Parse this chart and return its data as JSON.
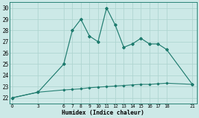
{
  "xlabel": "Humidex (Indice chaleur)",
  "bg_color": "#cce9e7",
  "line_color": "#1e7b6e",
  "grid_color": "#aed4d0",
  "x_ticks": [
    0,
    3,
    6,
    7,
    8,
    9,
    10,
    11,
    12,
    13,
    14,
    15,
    16,
    17,
    18,
    21
  ],
  "ylim": [
    21.5,
    30.5
  ],
  "yticks": [
    22,
    23,
    24,
    25,
    26,
    27,
    28,
    29,
    30
  ],
  "xlim": [
    -0.3,
    21.5
  ],
  "series1_x": [
    0,
    3,
    6,
    7,
    8,
    9,
    10,
    11,
    12,
    13,
    14,
    15,
    16,
    17,
    18,
    21
  ],
  "series1_y": [
    22.0,
    22.5,
    25.0,
    28.0,
    29.0,
    27.5,
    27.0,
    30.0,
    28.5,
    26.5,
    26.8,
    27.3,
    26.8,
    26.8,
    26.3,
    23.2
  ],
  "series2_x": [
    0,
    3,
    6,
    7,
    8,
    9,
    10,
    11,
    12,
    13,
    14,
    15,
    16,
    17,
    18,
    21
  ],
  "series2_y": [
    22.0,
    22.5,
    22.7,
    22.75,
    22.8,
    22.9,
    22.95,
    23.0,
    23.05,
    23.1,
    23.15,
    23.2,
    23.2,
    23.25,
    23.3,
    23.2
  ]
}
